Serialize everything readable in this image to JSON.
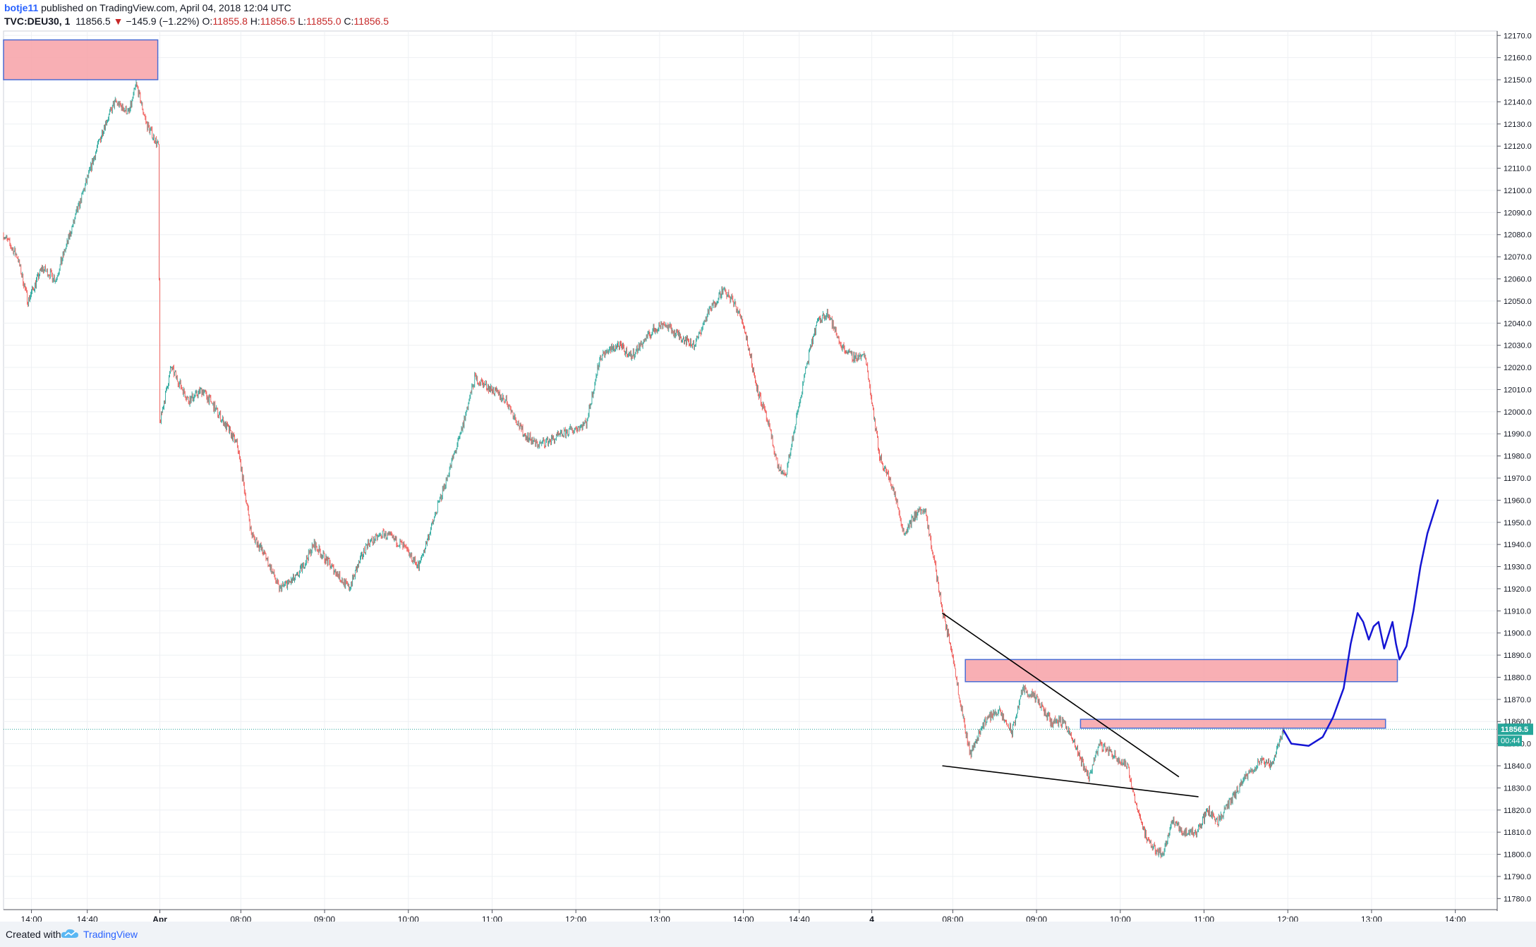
{
  "header": {
    "author": "botje11",
    "published_text": "published on TradingView.com, April 04, 2018 12:04 UTC",
    "symbol": "TVC:DEU30, 1",
    "last": "11856.5",
    "change": "−145.9 (−1.22%)",
    "o_label": "O:",
    "o_value": "11855.8",
    "h_label": "H:",
    "h_value": "11856.5",
    "l_label": "L:",
    "l_value": "11855.0",
    "c_label": "C:",
    "c_value": "11856.5"
  },
  "footer": {
    "created_with": "Created with",
    "brand": "TradingView"
  },
  "colors": {
    "up": "#26a69a",
    "down": "#ef5350",
    "box_fill": "#f7a1a7",
    "box_border": "#4a6cd4",
    "drawing": "#1515d4",
    "price_line": "#26a69a"
  },
  "chart_data": {
    "type": "candlestick",
    "symbol": "TVC:DEU30",
    "interval": "1",
    "ylim": [
      11775,
      12172
    ],
    "y_ticks": [
      12170,
      12160,
      12150,
      12140,
      12130,
      12120,
      12110,
      12100,
      12090,
      12080,
      12070,
      12060,
      12050,
      12040,
      12030,
      12020,
      12010,
      12000,
      11990,
      11980,
      11970,
      11960,
      11950,
      11940,
      11930,
      11920,
      11910,
      11900,
      11890,
      11880,
      11870,
      11860,
      11850,
      11840,
      11830,
      11820,
      11810,
      11800,
      11790,
      11780
    ],
    "y_tick_labels": [
      "12170.0",
      "12160.0",
      "12150.0",
      "12140.0",
      "12130.0",
      "12120.0",
      "12110.0",
      "12100.0",
      "12090.0",
      "12080.0",
      "12070.0",
      "12060.0",
      "12050.0",
      "12040.0",
      "12030.0",
      "12020.0",
      "12010.0",
      "12000.0",
      "11990.0",
      "11980.0",
      "11970.0",
      "11960.0",
      "11950.0",
      "11940.0",
      "11930.0",
      "11920.0",
      "11910.0",
      "11900.0",
      "11890.0",
      "11880.0",
      "11870.0",
      "11860.0",
      "11850.0",
      "11840.0",
      "11830.0",
      "11820.0",
      "11810.0",
      "11800.0",
      "11790.0",
      "11780.0"
    ],
    "x_tick_labels": [
      "14:00",
      "14:40",
      "Apr",
      "08:00",
      "09:00",
      "10:00",
      "11:00",
      "12:00",
      "13:00",
      "14:00",
      "14:40",
      "4",
      "08:00",
      "09:00",
      "10:00",
      "11:00",
      "12:00",
      "13:00",
      "14:00"
    ],
    "x_tick_index": [
      40,
      120,
      224,
      340,
      460,
      580,
      700,
      820,
      940,
      1060,
      1140,
      1244,
      1360,
      1480,
      1600,
      1720,
      1840,
      1960,
      2080
    ],
    "x_total_bars": 2140,
    "price_path": [
      [
        0,
        12080
      ],
      [
        20,
        12070
      ],
      [
        35,
        12050
      ],
      [
        55,
        12065
      ],
      [
        75,
        12060
      ],
      [
        95,
        12080
      ],
      [
        110,
        12095
      ],
      [
        125,
        12110
      ],
      [
        145,
        12130
      ],
      [
        160,
        12140
      ],
      [
        180,
        12135
      ],
      [
        190,
        12148
      ],
      [
        205,
        12130
      ],
      [
        222,
        12120
      ],
      [
        224,
        11995
      ],
      [
        240,
        12020
      ],
      [
        265,
        12005
      ],
      [
        285,
        12010
      ],
      [
        310,
        11998
      ],
      [
        335,
        11985
      ],
      [
        355,
        11945
      ],
      [
        375,
        11935
      ],
      [
        395,
        11920
      ],
      [
        420,
        11925
      ],
      [
        445,
        11940
      ],
      [
        470,
        11930
      ],
      [
        495,
        11920
      ],
      [
        520,
        11940
      ],
      [
        545,
        11945
      ],
      [
        570,
        11940
      ],
      [
        595,
        11930
      ],
      [
        610,
        11945
      ],
      [
        630,
        11965
      ],
      [
        655,
        11990
      ],
      [
        675,
        12015
      ],
      [
        700,
        12010
      ],
      [
        720,
        12005
      ],
      [
        745,
        11990
      ],
      [
        765,
        11985
      ],
      [
        790,
        11988
      ],
      [
        815,
        11992
      ],
      [
        835,
        11995
      ],
      [
        855,
        12025
      ],
      [
        880,
        12030
      ],
      [
        900,
        12025
      ],
      [
        925,
        12035
      ],
      [
        945,
        12040
      ],
      [
        965,
        12035
      ],
      [
        990,
        12030
      ],
      [
        1010,
        12045
      ],
      [
        1030,
        12055
      ],
      [
        1045,
        12050
      ],
      [
        1060,
        12040
      ],
      [
        1080,
        12010
      ],
      [
        1095,
        11995
      ],
      [
        1110,
        11975
      ],
      [
        1120,
        11970
      ],
      [
        1135,
        11995
      ],
      [
        1150,
        12020
      ],
      [
        1165,
        12040
      ],
      [
        1180,
        12045
      ],
      [
        1200,
        12030
      ],
      [
        1215,
        12025
      ],
      [
        1235,
        12025
      ],
      [
        1244,
        12005
      ],
      [
        1255,
        11980
      ],
      [
        1275,
        11965
      ],
      [
        1290,
        11945
      ],
      [
        1310,
        11955
      ],
      [
        1320,
        11955
      ],
      [
        1335,
        11930
      ],
      [
        1345,
        11910
      ],
      [
        1360,
        11890
      ],
      [
        1370,
        11870
      ],
      [
        1385,
        11845
      ],
      [
        1405,
        11860
      ],
      [
        1425,
        11865
      ],
      [
        1445,
        11855
      ],
      [
        1460,
        11875
      ],
      [
        1480,
        11870
      ],
      [
        1500,
        11860
      ],
      [
        1520,
        11860
      ],
      [
        1540,
        11845
      ],
      [
        1555,
        11835
      ],
      [
        1570,
        11850
      ],
      [
        1590,
        11845
      ],
      [
        1610,
        11840
      ],
      [
        1625,
        11820
      ],
      [
        1640,
        11805
      ],
      [
        1660,
        11800
      ],
      [
        1675,
        11815
      ],
      [
        1690,
        11810
      ],
      [
        1710,
        11810
      ],
      [
        1725,
        11820
      ],
      [
        1740,
        11815
      ],
      [
        1760,
        11825
      ],
      [
        1780,
        11835
      ],
      [
        1800,
        11842
      ],
      [
        1815,
        11840
      ],
      [
        1825,
        11848
      ],
      [
        1834,
        11857
      ]
    ],
    "annotations": {
      "zones": [
        [
          0,
          221,
          12150,
          12168
        ],
        [
          1378,
          1997,
          11878,
          11888
        ],
        [
          1543,
          1980,
          11857,
          11861
        ]
      ],
      "trendlines": [
        [
          1345,
          11909,
          1684,
          11835
        ],
        [
          1345,
          11840,
          1712,
          11826
        ]
      ],
      "forecast_path": [
        [
          1834,
          11856
        ],
        [
          1845,
          11850
        ],
        [
          1870,
          11849
        ],
        [
          1890,
          11853
        ],
        [
          1905,
          11862
        ],
        [
          1920,
          11875
        ],
        [
          1930,
          11895
        ],
        [
          1940,
          11909
        ],
        [
          1948,
          11905
        ],
        [
          1956,
          11897
        ],
        [
          1963,
          11903
        ],
        [
          1970,
          11905
        ],
        [
          1978,
          11893
        ],
        [
          1985,
          11900
        ],
        [
          1990,
          11905
        ],
        [
          1995,
          11895
        ],
        [
          2000,
          11888
        ],
        [
          2010,
          11894
        ],
        [
          2020,
          11910
        ],
        [
          2030,
          11930
        ],
        [
          2040,
          11945
        ],
        [
          2055,
          11960
        ]
      ]
    },
    "last_price": 11856.5,
    "last_price_label": "11856.5",
    "countdown_label": "00:44"
  }
}
